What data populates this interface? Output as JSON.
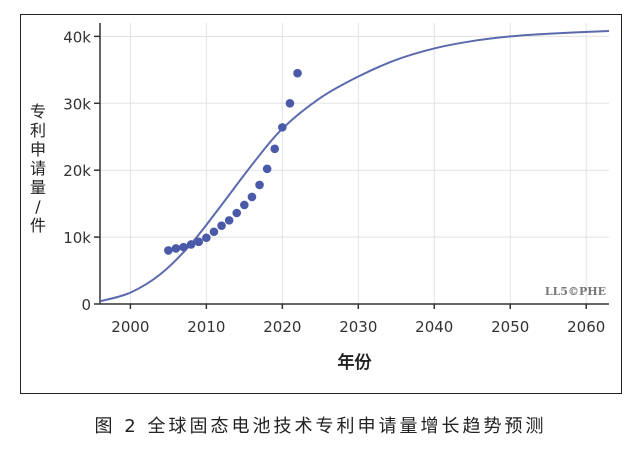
{
  "chart_data": {
    "type": "line",
    "title": "",
    "xlabel": "年份",
    "ylabel": "专利申请量/件",
    "xlim": [
      1996,
      2063
    ],
    "ylim": [
      0,
      42000
    ],
    "x_ticks": [
      2000,
      2010,
      2020,
      2030,
      2040,
      2050,
      2060
    ],
    "y_ticks": [
      0,
      10000,
      20000,
      30000,
      40000
    ],
    "y_tick_labels": [
      "0",
      "10k",
      "20k",
      "30k",
      "40k"
    ],
    "grid": true,
    "watermark": "LL5©PHE",
    "series": [
      {
        "kind": "line",
        "color": "#5b6aad",
        "x": [
          1996,
          2000,
          2004,
          2008,
          2012,
          2016,
          2020,
          2025,
          2030,
          2035,
          2040,
          2045,
          2050,
          2055,
          2063
        ],
        "y": [
          400,
          1700,
          4500,
          9000,
          14800,
          20800,
          26200,
          30800,
          34000,
          36500,
          38200,
          39300,
          40000,
          40400,
          40800
        ]
      },
      {
        "kind": "scatter",
        "color": "#4a5aa8",
        "x": [
          2005,
          2006,
          2007,
          2008,
          2009,
          2010,
          2011,
          2012,
          2013,
          2014,
          2015,
          2016,
          2017,
          2018,
          2019,
          2020,
          2021,
          2022
        ],
        "y": [
          8000,
          8300,
          8500,
          8900,
          9300,
          9900,
          10800,
          11700,
          12500,
          13600,
          14800,
          16000,
          17800,
          20200,
          23200,
          26400,
          30000,
          34500
        ]
      }
    ]
  },
  "caption": "图 2 全球固态电池技术专利申请量增长趋势预测"
}
